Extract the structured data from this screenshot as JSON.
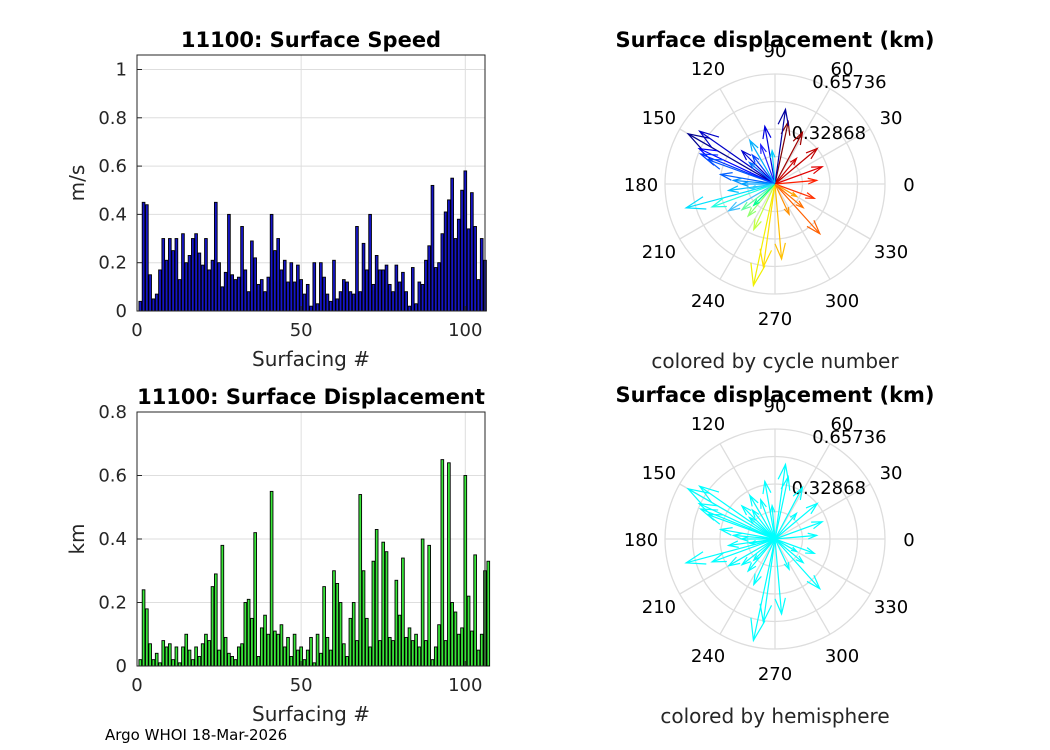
{
  "footer": "Argo WHOI 18-Mar-2026",
  "chart_data": [
    {
      "type": "bar",
      "title": "11100: Surface Speed",
      "xlabel": "Surfacing #",
      "ylabel": "m/s",
      "xlim": [
        0,
        106
      ],
      "ylim": [
        0,
        1.06
      ],
      "xticks": [
        "0",
        "50",
        "100"
      ],
      "yticks": [
        "0",
        "0.2",
        "0.4",
        "0.6",
        "0.8",
        "1"
      ],
      "bar_color": "#1515c8",
      "grid": true,
      "values": [
        0.04,
        0.45,
        0.44,
        0.15,
        0.05,
        0.07,
        0.17,
        0.3,
        0.21,
        0.3,
        0.25,
        0.3,
        0.13,
        0.32,
        0.2,
        0.23,
        0.3,
        0.32,
        0.24,
        0.19,
        0.3,
        0.17,
        0.21,
        0.45,
        0.2,
        0.1,
        0.16,
        0.4,
        0.15,
        0.13,
        0.14,
        0.35,
        0.17,
        0.08,
        0.29,
        0.22,
        0.11,
        0.13,
        0.08,
        0.14,
        0.4,
        0.25,
        0.3,
        0.17,
        0.21,
        0.12,
        0.2,
        0.12,
        0.19,
        0.13,
        0.07,
        0.11,
        0.02,
        0.2,
        0.03,
        0.2,
        0.14,
        0.07,
        0.04,
        0.21,
        0.05,
        0.08,
        0.13,
        0.12,
        0.08,
        0.07,
        0.35,
        0.08,
        0.28,
        0.17,
        0.4,
        0.11,
        0.23,
        0.17,
        0.17,
        0.19,
        0.11,
        0.08,
        0.19,
        0.12,
        0.16,
        0.08,
        0.02,
        0.18,
        0.03,
        0.12,
        0.11,
        0.21,
        0.27,
        0.52,
        0.18,
        0.2,
        0.32,
        0.41,
        0.46,
        0.55,
        0.3,
        0.38,
        0.5,
        0.58,
        0.34,
        0.49,
        0.35,
        0.13,
        0.3,
        0.21
      ]
    },
    {
      "type": "bar",
      "title": "11100: Surface Displacement",
      "xlabel": "Surfacing #",
      "ylabel": "km",
      "xlim": [
        0,
        106
      ],
      "ylim": [
        0,
        0.8
      ],
      "xticks": [
        "0",
        "50",
        "100"
      ],
      "yticks": [
        "0",
        "0.2",
        "0.4",
        "0.6",
        "0.8"
      ],
      "bar_color": "#39e639",
      "grid": true,
      "values": [
        0.02,
        0.24,
        0.18,
        0.07,
        0.02,
        0.04,
        0.01,
        0.08,
        0.06,
        0.07,
        0.02,
        0.06,
        0.01,
        0.06,
        0.1,
        0.05,
        0.02,
        0.06,
        0.03,
        0.07,
        0.1,
        0.08,
        0.25,
        0.29,
        0.05,
        0.38,
        0.09,
        0.04,
        0.03,
        0.02,
        0.06,
        0.07,
        0.2,
        0.21,
        0.15,
        0.42,
        0.03,
        0.12,
        0.16,
        0.1,
        0.55,
        0.11,
        0.1,
        0.13,
        0.06,
        0.09,
        0.03,
        0.1,
        0.05,
        0.06,
        0.02,
        0.05,
        0.09,
        0.01,
        0.1,
        0.04,
        0.25,
        0.09,
        0.05,
        0.3,
        0.26,
        0.2,
        0.07,
        0.03,
        0.15,
        0.2,
        0.08,
        0.54,
        0.3,
        0.15,
        0.06,
        0.33,
        0.43,
        0.08,
        0.39,
        0.36,
        0.09,
        0.08,
        0.27,
        0.16,
        0.34,
        0.09,
        0.12,
        0.08,
        0.1,
        0.06,
        0.4,
        0.08,
        0.38,
        0.02,
        0.06,
        0.13,
        0.65,
        0.08,
        0.64,
        0.2,
        0.17,
        0.1,
        0.12,
        0.6,
        0.22,
        0.11,
        0.35,
        0.05,
        0.1,
        0.3,
        0.33
      ]
    },
    {
      "type": "compass",
      "title": "Surface displacement (km)",
      "caption": "colored by cycle number",
      "radial_max": 0.65736,
      "radial_ticks": [
        "0.32868",
        "0.65736"
      ],
      "angle_labels": [
        "0",
        "30",
        "60",
        "90",
        "120",
        "150",
        "180",
        "210",
        "240",
        "270",
        "300",
        "330"
      ],
      "arrows": [
        {
          "angle": 150,
          "length": 0.6,
          "color": "#00008f"
        },
        {
          "angle": 145,
          "length": 0.55,
          "color": "#0000c8"
        },
        {
          "angle": 155,
          "length": 0.5,
          "color": "#0000ff"
        },
        {
          "angle": 158,
          "length": 0.48,
          "color": "#0033ff"
        },
        {
          "angle": 160,
          "length": 0.43,
          "color": "#0055ff"
        },
        {
          "angle": 135,
          "length": 0.28,
          "color": "#0000d0"
        },
        {
          "angle": 128,
          "length": 0.22,
          "color": "#0040ff"
        },
        {
          "angle": 170,
          "length": 0.33,
          "color": "#0060ff"
        },
        {
          "angle": 175,
          "length": 0.25,
          "color": "#0090ff"
        },
        {
          "angle": 188,
          "length": 0.28,
          "color": "#00c0ff"
        },
        {
          "angle": 195,
          "length": 0.55,
          "color": "#00e0ff"
        },
        {
          "angle": 200,
          "length": 0.4,
          "color": "#20ffe0"
        },
        {
          "angle": 210,
          "length": 0.32,
          "color": "#40c0ff"
        },
        {
          "angle": 218,
          "length": 0.25,
          "color": "#60ffa0"
        },
        {
          "angle": 230,
          "length": 0.25,
          "color": "#90ff70"
        },
        {
          "angle": 245,
          "length": 0.3,
          "color": "#c0ff40"
        },
        {
          "angle": 258,
          "length": 0.62,
          "color": "#f0f000"
        },
        {
          "angle": 262,
          "length": 0.5,
          "color": "#ffe000"
        },
        {
          "angle": 275,
          "length": 0.45,
          "color": "#ffc000"
        },
        {
          "angle": 295,
          "length": 0.2,
          "color": "#ff9000"
        },
        {
          "angle": 312,
          "length": 0.4,
          "color": "#ff6000"
        },
        {
          "angle": 340,
          "length": 0.25,
          "color": "#ff3000"
        },
        {
          "angle": 5,
          "length": 0.25,
          "color": "#ff2000"
        },
        {
          "angle": 20,
          "length": 0.3,
          "color": "#e00000"
        },
        {
          "angle": 40,
          "length": 0.33,
          "color": "#c00000"
        },
        {
          "angle": 62,
          "length": 0.35,
          "color": "#a00000"
        },
        {
          "angle": 78,
          "length": 0.38,
          "color": "#800000"
        },
        {
          "angle": 82,
          "length": 0.45,
          "color": "#0000a0"
        },
        {
          "angle": 100,
          "length": 0.35,
          "color": "#0000e0"
        },
        {
          "angle": 110,
          "length": 0.25,
          "color": "#2020ff"
        },
        {
          "angle": 120,
          "length": 0.3,
          "color": "#00b0ff"
        },
        {
          "angle": 95,
          "length": 0.2,
          "color": "#00d0ff"
        },
        {
          "angle": 180,
          "length": 0.2,
          "color": "#00a0ff"
        },
        {
          "angle": 190,
          "length": 0.15,
          "color": "#30d0ff"
        },
        {
          "angle": 225,
          "length": 0.18,
          "color": "#00ff90"
        },
        {
          "angle": 320,
          "length": 0.22,
          "color": "#ff7000"
        },
        {
          "angle": 330,
          "length": 0.15,
          "color": "#ffa000"
        },
        {
          "angle": 50,
          "length": 0.2,
          "color": "#d00000"
        },
        {
          "angle": 140,
          "length": 0.2,
          "color": "#0070ff"
        }
      ]
    },
    {
      "type": "compass",
      "title": "Surface displacement (km)",
      "caption": "colored by hemisphere",
      "radial_max": 0.65736,
      "radial_ticks": [
        "0.32868",
        "0.65736"
      ],
      "angle_labels": [
        "0",
        "30",
        "60",
        "90",
        "120",
        "150",
        "180",
        "210",
        "240",
        "270",
        "300",
        "330"
      ],
      "arrow_color": "#00ffff",
      "arrows": [
        {
          "angle": 150,
          "length": 0.6
        },
        {
          "angle": 145,
          "length": 0.55
        },
        {
          "angle": 155,
          "length": 0.5
        },
        {
          "angle": 158,
          "length": 0.48
        },
        {
          "angle": 160,
          "length": 0.43
        },
        {
          "angle": 135,
          "length": 0.28
        },
        {
          "angle": 128,
          "length": 0.22
        },
        {
          "angle": 170,
          "length": 0.33
        },
        {
          "angle": 175,
          "length": 0.25
        },
        {
          "angle": 188,
          "length": 0.28
        },
        {
          "angle": 195,
          "length": 0.55
        },
        {
          "angle": 200,
          "length": 0.4
        },
        {
          "angle": 210,
          "length": 0.32
        },
        {
          "angle": 218,
          "length": 0.25
        },
        {
          "angle": 230,
          "length": 0.25
        },
        {
          "angle": 245,
          "length": 0.3
        },
        {
          "angle": 258,
          "length": 0.62
        },
        {
          "angle": 262,
          "length": 0.5
        },
        {
          "angle": 275,
          "length": 0.45
        },
        {
          "angle": 295,
          "length": 0.2
        },
        {
          "angle": 312,
          "length": 0.4
        },
        {
          "angle": 340,
          "length": 0.25
        },
        {
          "angle": 5,
          "length": 0.25
        },
        {
          "angle": 20,
          "length": 0.3
        },
        {
          "angle": 40,
          "length": 0.33
        },
        {
          "angle": 62,
          "length": 0.35
        },
        {
          "angle": 78,
          "length": 0.38
        },
        {
          "angle": 82,
          "length": 0.45
        },
        {
          "angle": 100,
          "length": 0.35
        },
        {
          "angle": 110,
          "length": 0.25
        },
        {
          "angle": 120,
          "length": 0.3
        },
        {
          "angle": 95,
          "length": 0.2
        },
        {
          "angle": 180,
          "length": 0.2
        },
        {
          "angle": 190,
          "length": 0.15
        },
        {
          "angle": 225,
          "length": 0.18
        },
        {
          "angle": 320,
          "length": 0.22
        },
        {
          "angle": 330,
          "length": 0.15
        },
        {
          "angle": 50,
          "length": 0.2
        },
        {
          "angle": 140,
          "length": 0.2
        }
      ]
    }
  ]
}
